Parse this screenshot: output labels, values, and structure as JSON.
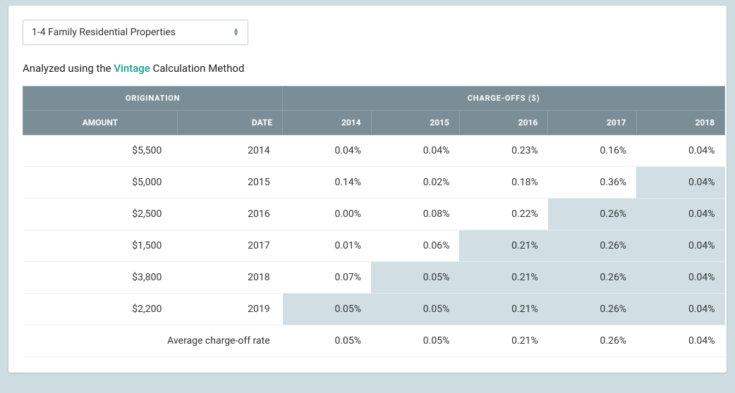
{
  "dropdown": {
    "selected": "1-4 Family Residential Properties"
  },
  "analyzed": {
    "prefix": "Analyzed using the ",
    "method_link": "Vintage",
    "suffix": " Calculation Method"
  },
  "table": {
    "header_group_origination": "ORIGINATION",
    "header_group_chargeoffs": "CHARGE-OFFS ($)",
    "col_amount": "AMOUNT",
    "col_date": "DATE",
    "years": [
      "2014",
      "2015",
      "2016",
      "2017",
      "2018"
    ],
    "colors": {
      "header_bg": "#7b8e97",
      "shaded_cell": "#d1dee3",
      "row_border": "#e9edef",
      "card_bg": "#ffffff",
      "page_bg": "#cddde2"
    },
    "rows": [
      {
        "amount": "$5,500",
        "date": "2014",
        "vals": [
          "0.04%",
          "0.04%",
          "0.23%",
          "0.16%",
          "0.04%"
        ],
        "shaded": [
          false,
          false,
          false,
          false,
          false
        ]
      },
      {
        "amount": "$5,000",
        "date": "2015",
        "vals": [
          "0.14%",
          "0.02%",
          "0.18%",
          "0.36%",
          "0.04%"
        ],
        "shaded": [
          false,
          false,
          false,
          false,
          true
        ]
      },
      {
        "amount": "$2,500",
        "date": "2016",
        "vals": [
          "0.00%",
          "0.08%",
          "0.22%",
          "0.26%",
          "0.04%"
        ],
        "shaded": [
          false,
          false,
          false,
          true,
          true
        ]
      },
      {
        "amount": "$1,500",
        "date": "2017",
        "vals": [
          "0.01%",
          "0.06%",
          "0.21%",
          "0.26%",
          "0.04%"
        ],
        "shaded": [
          false,
          false,
          true,
          true,
          true
        ]
      },
      {
        "amount": "$3,800",
        "date": "2018",
        "vals": [
          "0.07%",
          "0.05%",
          "0.21%",
          "0.26%",
          "0.04%"
        ],
        "shaded": [
          false,
          true,
          true,
          true,
          true
        ]
      },
      {
        "amount": "$2,200",
        "date": "2019",
        "vals": [
          "0.05%",
          "0.05%",
          "0.21%",
          "0.26%",
          "0.04%"
        ],
        "shaded": [
          true,
          true,
          true,
          true,
          true
        ]
      }
    ],
    "average": {
      "label": "Average charge-off rate",
      "vals": [
        "0.05%",
        "0.05%",
        "0.21%",
        "0.26%",
        "0.04%"
      ]
    }
  }
}
